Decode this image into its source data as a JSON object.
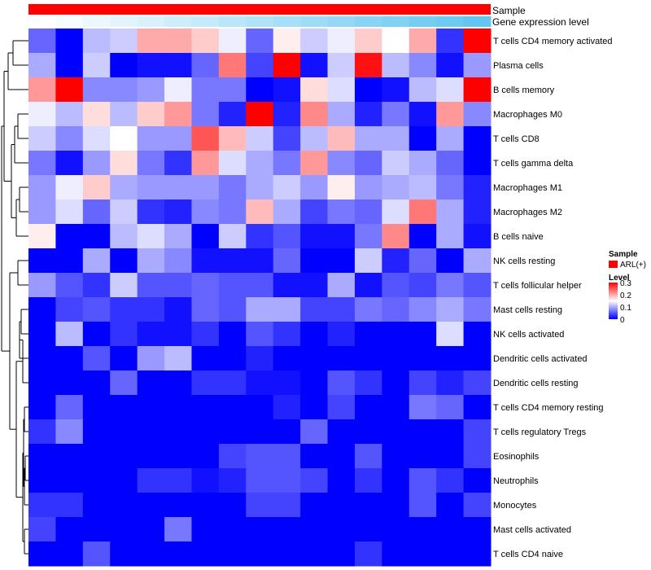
{
  "chart_data": {
    "type": "heatmap",
    "title": "",
    "n_samples": 17,
    "rows": [
      "T cells CD4 memory activated",
      "Plasma cells",
      "B cells memory",
      "Macrophages M0",
      "T cells CD8",
      "T cells gamma delta",
      "Macrophages M1",
      "Macrophages M2",
      "B cells naive",
      "NK cells resting",
      "T cells follicular helper",
      "Mast cells resting",
      "NK cells activated",
      "Dendritic cells activated",
      "Dendritic cells resting",
      "T cells CD4 memory resting",
      "T cells regulatory  Tregs",
      "Eosinophils",
      "Neutrophils",
      "Monocytes",
      "Mast cells activated",
      "T cells CD4 naive"
    ],
    "values": [
      [
        0.06,
        0.0,
        0.11,
        0.12,
        0.2,
        0.2,
        0.18,
        0.14,
        0.06,
        0.16,
        0.12,
        0.14,
        0.18,
        0.15,
        0.2,
        0.03,
        0.3
      ],
      [
        0.1,
        0.0,
        0.12,
        0.0,
        0.01,
        0.01,
        0.06,
        0.23,
        0.04,
        0.3,
        0.01,
        0.12,
        0.29,
        0.11,
        0.08,
        0.01,
        0.09
      ],
      [
        0.21,
        0.3,
        0.08,
        0.08,
        0.09,
        0.14,
        0.07,
        0.07,
        0.0,
        0.01,
        0.17,
        0.13,
        0.0,
        0.01,
        0.11,
        0.13,
        0.3
      ],
      [
        0.14,
        0.11,
        0.17,
        0.11,
        0.18,
        0.21,
        0.07,
        0.02,
        0.3,
        0.02,
        0.22,
        0.1,
        0.02,
        0.07,
        0.01,
        0.21,
        0.08
      ],
      [
        0.12,
        0.08,
        0.13,
        0.15,
        0.09,
        0.09,
        0.25,
        0.19,
        0.12,
        0.04,
        0.11,
        0.19,
        0.1,
        0.1,
        0.0,
        0.1,
        0.0
      ],
      [
        0.07,
        0.01,
        0.09,
        0.17,
        0.07,
        0.03,
        0.21,
        0.13,
        0.1,
        0.07,
        0.21,
        0.08,
        0.06,
        0.12,
        0.1,
        0.06,
        0.0
      ],
      [
        0.09,
        0.14,
        0.18,
        0.1,
        0.09,
        0.09,
        0.09,
        0.07,
        0.1,
        0.12,
        0.09,
        0.16,
        0.09,
        0.1,
        0.11,
        0.07,
        0.02
      ],
      [
        0.09,
        0.13,
        0.06,
        0.12,
        0.03,
        0.02,
        0.08,
        0.07,
        0.19,
        0.1,
        0.04,
        0.07,
        0.06,
        0.13,
        0.23,
        0.1,
        0.02
      ],
      [
        0.16,
        0.0,
        0.0,
        0.11,
        0.13,
        0.1,
        0.0,
        0.12,
        0.03,
        0.05,
        0.01,
        0.01,
        0.07,
        0.22,
        0.0,
        0.1,
        0.01
      ],
      [
        0.0,
        0.0,
        0.1,
        0.0,
        0.1,
        0.08,
        0.01,
        0.01,
        0.01,
        0.06,
        0.0,
        0.0,
        0.12,
        0.02,
        0.06,
        0.0,
        0.1
      ],
      [
        0.09,
        0.05,
        0.03,
        0.12,
        0.05,
        0.05,
        0.06,
        0.05,
        0.05,
        0.01,
        0.01,
        0.1,
        0.01,
        0.05,
        0.04,
        0.07,
        0.05
      ],
      [
        0.0,
        0.04,
        0.05,
        0.03,
        0.03,
        0.01,
        0.06,
        0.05,
        0.1,
        0.1,
        0.04,
        0.04,
        0.07,
        0.06,
        0.08,
        0.1,
        0.07
      ],
      [
        0.0,
        0.11,
        0.0,
        0.03,
        0.01,
        0.01,
        0.03,
        0.0,
        0.05,
        0.03,
        0.0,
        0.02,
        0.0,
        0.0,
        0.0,
        0.13,
        0.0
      ],
      [
        0.0,
        0.0,
        0.05,
        0.0,
        0.09,
        0.11,
        0.0,
        0.0,
        0.02,
        0.0,
        0.0,
        0.0,
        0.0,
        0.0,
        0.0,
        0.0,
        0.0
      ],
      [
        0.0,
        0.0,
        0.0,
        0.06,
        0.0,
        0.0,
        0.03,
        0.03,
        0.01,
        0.01,
        0.0,
        0.05,
        0.03,
        0.0,
        0.04,
        0.02,
        0.04
      ],
      [
        0.0,
        0.06,
        0.0,
        0.0,
        0.0,
        0.0,
        0.0,
        0.0,
        0.0,
        0.02,
        0.0,
        0.04,
        0.0,
        0.0,
        0.07,
        0.06,
        0.0
      ],
      [
        0.03,
        0.08,
        0.0,
        0.0,
        0.0,
        0.0,
        0.0,
        0.0,
        0.0,
        0.0,
        0.06,
        0.0,
        0.0,
        0.0,
        0.0,
        0.0,
        0.04
      ],
      [
        0.0,
        0.0,
        0.0,
        0.0,
        0.0,
        0.0,
        0.0,
        0.04,
        0.05,
        0.05,
        0.0,
        0.0,
        0.05,
        0.0,
        0.0,
        0.0,
        0.04
      ],
      [
        0.0,
        0.0,
        0.0,
        0.0,
        0.03,
        0.03,
        0.01,
        0.02,
        0.05,
        0.05,
        0.04,
        0.0,
        0.03,
        0.0,
        0.05,
        0.03,
        0.0
      ],
      [
        0.03,
        0.03,
        0.0,
        0.0,
        0.0,
        0.0,
        0.0,
        0.0,
        0.04,
        0.04,
        0.0,
        0.0,
        0.0,
        0.0,
        0.05,
        0.0,
        0.04
      ],
      [
        0.04,
        0.0,
        0.0,
        0.0,
        0.0,
        0.07,
        0.0,
        0.0,
        0.0,
        0.0,
        0.0,
        0.0,
        0.0,
        0.0,
        0.0,
        0.0,
        0.0
      ],
      [
        0.0,
        0.0,
        0.05,
        0.0,
        0.0,
        0.0,
        0.0,
        0.0,
        0.0,
        0.0,
        0.0,
        0.0,
        0.03,
        0.0,
        0.0,
        0.0,
        0.0
      ]
    ],
    "color_scale": {
      "min": 0,
      "max": 0.3,
      "low_color": "#0000ff",
      "mid_color": "#ffffff",
      "high_color": "#ff0000",
      "ticks": [
        0,
        0.1,
        0.2,
        0.3
      ],
      "tick_labels": [
        "0",
        "0.1",
        "0.2",
        "0.3"
      ]
    },
    "annotations": {
      "sample": {
        "label": "Sample",
        "color": "#ff0000"
      },
      "gene_expression": {
        "label": "Gene expression level",
        "values": [
          0.0,
          0.06,
          0.12,
          0.18,
          0.25,
          0.31,
          0.37,
          0.43,
          0.5,
          0.56,
          0.62,
          0.68,
          0.75,
          0.81,
          0.87,
          0.93,
          1.0
        ],
        "low_color": "#ffffff",
        "high_color": "#62c6f0"
      }
    },
    "legend": {
      "position": "right",
      "sample_title": "Sample",
      "sample_item": "ARL(+)",
      "sample_color": "#ff0000",
      "level_title": "Level"
    }
  }
}
